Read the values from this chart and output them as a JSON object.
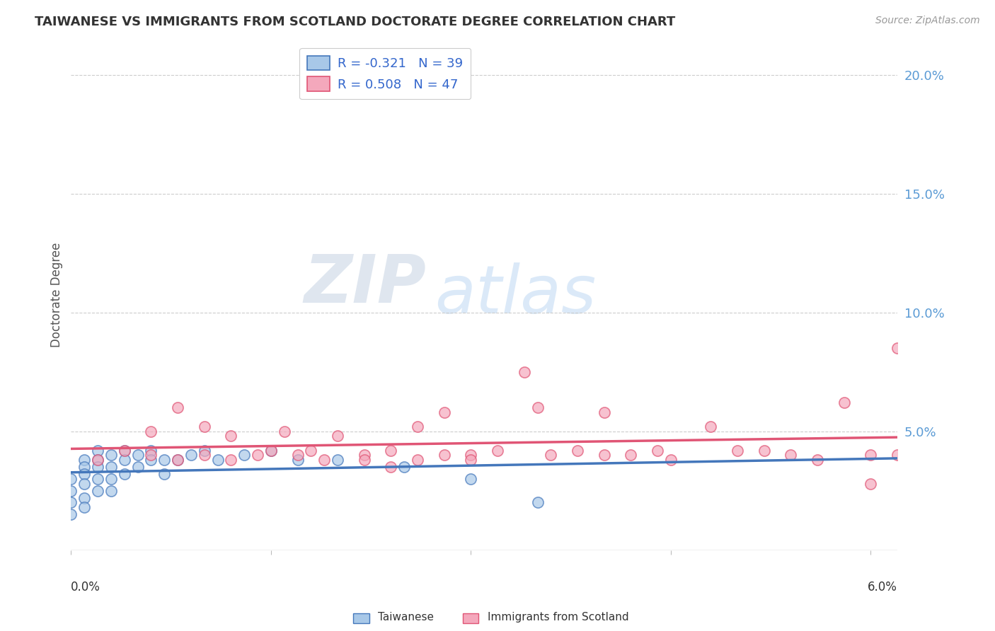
{
  "title": "TAIWANESE VS IMMIGRANTS FROM SCOTLAND DOCTORATE DEGREE CORRELATION CHART",
  "source": "Source: ZipAtlas.com",
  "ylabel": "Doctorate Degree",
  "ylim": [
    0.0,
    0.215
  ],
  "xlim": [
    0.0,
    0.062
  ],
  "color_taiwanese": "#a8c8e8",
  "color_scotland": "#f4a8bc",
  "color_taiwanese_line": "#4477bb",
  "color_scotland_line": "#e05575",
  "watermark_zip": "ZIP",
  "watermark_atlas": "atlas",
  "taiwanese_x": [
    0.0,
    0.0,
    0.0,
    0.0,
    0.001,
    0.001,
    0.001,
    0.001,
    0.001,
    0.001,
    0.002,
    0.002,
    0.002,
    0.002,
    0.002,
    0.003,
    0.003,
    0.003,
    0.003,
    0.004,
    0.004,
    0.004,
    0.005,
    0.005,
    0.006,
    0.006,
    0.007,
    0.007,
    0.008,
    0.009,
    0.01,
    0.011,
    0.013,
    0.015,
    0.017,
    0.02,
    0.025,
    0.03,
    0.035
  ],
  "taiwanese_y": [
    0.03,
    0.025,
    0.02,
    0.015,
    0.038,
    0.035,
    0.032,
    0.028,
    0.022,
    0.018,
    0.042,
    0.038,
    0.035,
    0.03,
    0.025,
    0.04,
    0.035,
    0.03,
    0.025,
    0.042,
    0.038,
    0.032,
    0.04,
    0.035,
    0.042,
    0.038,
    0.038,
    0.032,
    0.038,
    0.04,
    0.042,
    0.038,
    0.04,
    0.042,
    0.038,
    0.038,
    0.035,
    0.03,
    0.02
  ],
  "scotland_x": [
    0.002,
    0.004,
    0.006,
    0.006,
    0.008,
    0.008,
    0.01,
    0.01,
    0.012,
    0.012,
    0.014,
    0.015,
    0.016,
    0.017,
    0.018,
    0.019,
    0.02,
    0.022,
    0.022,
    0.024,
    0.024,
    0.026,
    0.026,
    0.028,
    0.028,
    0.03,
    0.03,
    0.032,
    0.034,
    0.035,
    0.036,
    0.038,
    0.04,
    0.04,
    0.042,
    0.044,
    0.045,
    0.048,
    0.05,
    0.052,
    0.054,
    0.056,
    0.058,
    0.06,
    0.06,
    0.062,
    0.062
  ],
  "scotland_y": [
    0.038,
    0.042,
    0.05,
    0.04,
    0.06,
    0.038,
    0.052,
    0.04,
    0.048,
    0.038,
    0.04,
    0.042,
    0.05,
    0.04,
    0.042,
    0.038,
    0.048,
    0.04,
    0.038,
    0.042,
    0.035,
    0.052,
    0.038,
    0.058,
    0.04,
    0.04,
    0.038,
    0.042,
    0.075,
    0.06,
    0.04,
    0.042,
    0.04,
    0.058,
    0.04,
    0.042,
    0.038,
    0.052,
    0.042,
    0.042,
    0.04,
    0.038,
    0.062,
    0.04,
    0.028,
    0.085,
    0.04
  ],
  "background_color": "#ffffff"
}
